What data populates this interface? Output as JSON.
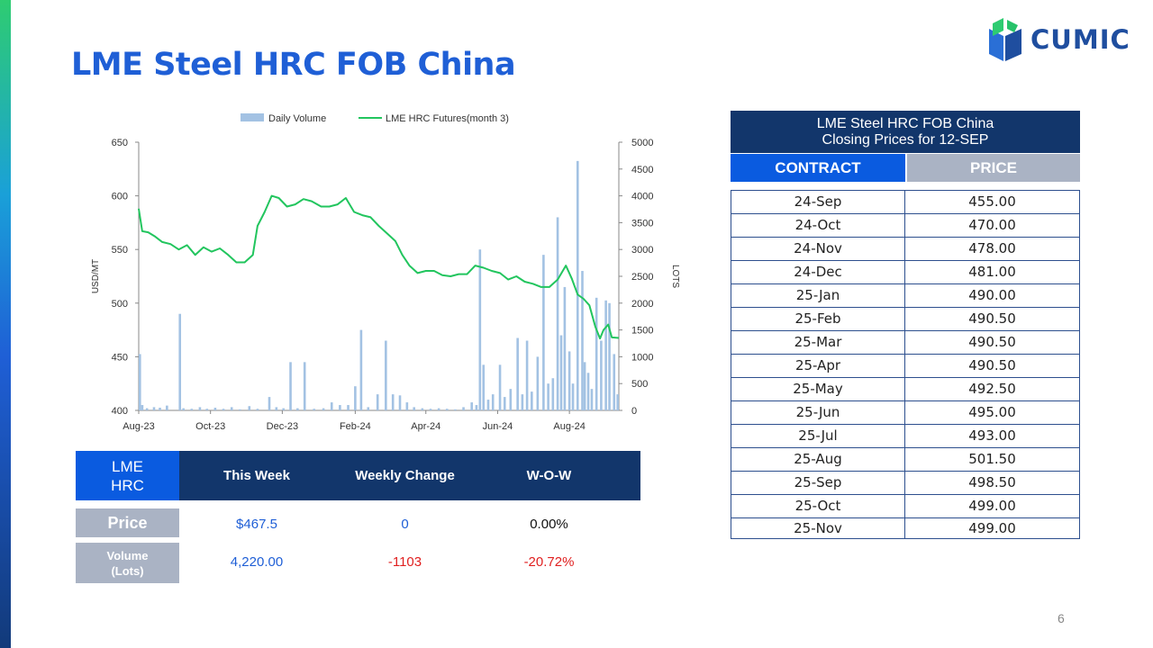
{
  "page": {
    "title": "LME Steel HRC FOB China",
    "page_number": "6",
    "colors": {
      "title": "#1f5fd6",
      "navy": "#12366b",
      "blue": "#0a5be0",
      "gray": "#aab3c4",
      "green": "#22c55e",
      "bar": "#a3c2e3",
      "red": "#e02020"
    }
  },
  "logo": {
    "text": "CUMIC"
  },
  "chart_data": {
    "type": "bar+line",
    "legend": [
      "Daily Volume",
      "LME HRC Futures(month 3)"
    ],
    "legend_position": "top",
    "left_axis": {
      "label": "USD/MT",
      "ylim": [
        400,
        650
      ],
      "ticks": [
        "400",
        "450",
        "500",
        "550",
        "600",
        "650"
      ]
    },
    "right_axis": {
      "label": "LOTS",
      "ylim": [
        0,
        5000
      ],
      "ticks": [
        "0",
        "500",
        "1000",
        "1500",
        "2000",
        "2500",
        "3000",
        "3500",
        "4000",
        "4500",
        "5000"
      ]
    },
    "x_ticks": [
      "Aug-23",
      "Oct-23",
      "Dec-23",
      "Feb-24",
      "Apr-24",
      "Jun-24",
      "Aug-24"
    ],
    "x_range": [
      "2023-08-01",
      "2024-09-12"
    ],
    "futures_line": [
      [
        "2023-08-01",
        588
      ],
      [
        "2023-08-04",
        567
      ],
      [
        "2023-08-09",
        566
      ],
      [
        "2023-08-15",
        562
      ],
      [
        "2023-08-21",
        557
      ],
      [
        "2023-08-28",
        555
      ],
      [
        "2023-09-04",
        550
      ],
      [
        "2023-09-11",
        554
      ],
      [
        "2023-09-18",
        545
      ],
      [
        "2023-09-25",
        552
      ],
      [
        "2023-10-02",
        548
      ],
      [
        "2023-10-09",
        551
      ],
      [
        "2023-10-16",
        545
      ],
      [
        "2023-10-23",
        538
      ],
      [
        "2023-10-30",
        538
      ],
      [
        "2023-11-06",
        545
      ],
      [
        "2023-11-10",
        572
      ],
      [
        "2023-11-16",
        585
      ],
      [
        "2023-11-22",
        600
      ],
      [
        "2023-11-28",
        598
      ],
      [
        "2023-12-05",
        590
      ],
      [
        "2023-12-12",
        592
      ],
      [
        "2023-12-19",
        597
      ],
      [
        "2023-12-26",
        595
      ],
      [
        "2024-01-03",
        590
      ],
      [
        "2024-01-10",
        590
      ],
      [
        "2024-01-17",
        592
      ],
      [
        "2024-01-24",
        598
      ],
      [
        "2024-01-31",
        585
      ],
      [
        "2024-02-07",
        582
      ],
      [
        "2024-02-14",
        580
      ],
      [
        "2024-02-21",
        572
      ],
      [
        "2024-02-28",
        565
      ],
      [
        "2024-03-06",
        558
      ],
      [
        "2024-03-12",
        545
      ],
      [
        "2024-03-18",
        535
      ],
      [
        "2024-03-25",
        528
      ],
      [
        "2024-04-01",
        530
      ],
      [
        "2024-04-08",
        530
      ],
      [
        "2024-04-15",
        526
      ],
      [
        "2024-04-22",
        525
      ],
      [
        "2024-04-29",
        527
      ],
      [
        "2024-05-06",
        527
      ],
      [
        "2024-05-13",
        535
      ],
      [
        "2024-05-20",
        533
      ],
      [
        "2024-05-27",
        530
      ],
      [
        "2024-06-03",
        528
      ],
      [
        "2024-06-10",
        522
      ],
      [
        "2024-06-17",
        525
      ],
      [
        "2024-06-24",
        520
      ],
      [
        "2024-07-01",
        518
      ],
      [
        "2024-07-08",
        515
      ],
      [
        "2024-07-15",
        515
      ],
      [
        "2024-07-22",
        522
      ],
      [
        "2024-07-29",
        535
      ],
      [
        "2024-08-03",
        523
      ],
      [
        "2024-08-08",
        508
      ],
      [
        "2024-08-13",
        504
      ],
      [
        "2024-08-18",
        498
      ],
      [
        "2024-08-23",
        478
      ],
      [
        "2024-08-27",
        467
      ],
      [
        "2024-08-30",
        475
      ],
      [
        "2024-09-03",
        480
      ],
      [
        "2024-09-06",
        468
      ],
      [
        "2024-09-12",
        467.5
      ]
    ],
    "volume_bars": [
      [
        "2023-08-02",
        1050
      ],
      [
        "2023-08-04",
        100
      ],
      [
        "2023-08-08",
        40
      ],
      [
        "2023-08-14",
        60
      ],
      [
        "2023-08-19",
        50
      ],
      [
        "2023-08-25",
        90
      ],
      [
        "2023-09-05",
        1800
      ],
      [
        "2023-09-08",
        40
      ],
      [
        "2023-09-15",
        30
      ],
      [
        "2023-09-22",
        60
      ],
      [
        "2023-09-28",
        30
      ],
      [
        "2023-10-05",
        50
      ],
      [
        "2023-10-12",
        30
      ],
      [
        "2023-10-19",
        60
      ],
      [
        "2023-10-26",
        20
      ],
      [
        "2023-11-03",
        80
      ],
      [
        "2023-11-10",
        30
      ],
      [
        "2023-11-20",
        250
      ],
      [
        "2023-11-26",
        60
      ],
      [
        "2023-12-02",
        40
      ],
      [
        "2023-12-08",
        900
      ],
      [
        "2023-12-14",
        40
      ],
      [
        "2023-12-20",
        900
      ],
      [
        "2023-12-28",
        30
      ],
      [
        "2024-01-05",
        40
      ],
      [
        "2024-01-12",
        150
      ],
      [
        "2024-01-19",
        100
      ],
      [
        "2024-01-26",
        100
      ],
      [
        "2024-02-01",
        450
      ],
      [
        "2024-02-06",
        1500
      ],
      [
        "2024-02-12",
        60
      ],
      [
        "2024-02-20",
        300
      ],
      [
        "2024-02-27",
        1300
      ],
      [
        "2024-03-04",
        300
      ],
      [
        "2024-03-10",
        280
      ],
      [
        "2024-03-16",
        150
      ],
      [
        "2024-03-22",
        60
      ],
      [
        "2024-03-29",
        40
      ],
      [
        "2024-04-05",
        30
      ],
      [
        "2024-04-12",
        40
      ],
      [
        "2024-04-19",
        30
      ],
      [
        "2024-04-26",
        20
      ],
      [
        "2024-05-03",
        60
      ],
      [
        "2024-05-10",
        150
      ],
      [
        "2024-05-14",
        100
      ],
      [
        "2024-05-17",
        3000
      ],
      [
        "2024-05-20",
        850
      ],
      [
        "2024-05-24",
        200
      ],
      [
        "2024-05-28",
        300
      ],
      [
        "2024-06-03",
        850
      ],
      [
        "2024-06-07",
        250
      ],
      [
        "2024-06-12",
        400
      ],
      [
        "2024-06-18",
        1350
      ],
      [
        "2024-06-22",
        300
      ],
      [
        "2024-06-26",
        1300
      ],
      [
        "2024-06-30",
        350
      ],
      [
        "2024-07-05",
        1000
      ],
      [
        "2024-07-10",
        2900
      ],
      [
        "2024-07-14",
        500
      ],
      [
        "2024-07-18",
        600
      ],
      [
        "2024-07-22",
        3600
      ],
      [
        "2024-07-25",
        1400
      ],
      [
        "2024-07-28",
        2300
      ],
      [
        "2024-08-01",
        1100
      ],
      [
        "2024-08-04",
        500
      ],
      [
        "2024-08-08",
        4650
      ],
      [
        "2024-08-12",
        2600
      ],
      [
        "2024-08-14",
        900
      ],
      [
        "2024-08-17",
        700
      ],
      [
        "2024-08-20",
        400
      ],
      [
        "2024-08-24",
        2100
      ],
      [
        "2024-08-28",
        1300
      ],
      [
        "2024-09-01",
        2050
      ],
      [
        "2024-09-04",
        2000
      ],
      [
        "2024-09-08",
        1050
      ],
      [
        "2024-09-11",
        300
      ]
    ]
  },
  "summary": {
    "corner_line1": "LME",
    "corner_line2": "HRC",
    "headers": [
      "This Week",
      "Weekly Change",
      "W-O-W"
    ],
    "price": {
      "label": "Price",
      "this_week": "$467.5",
      "change": "0",
      "wow": "0.00%"
    },
    "volume": {
      "label_line1": "Volume",
      "label_line2": "(Lots)",
      "this_week": "4,220.00",
      "change": "-1103",
      "wow": "-20.72%"
    }
  },
  "price_table": {
    "title_line1": "LME Steel HRC FOB China",
    "title_line2": "Closing Prices for 12-SEP",
    "col_contract": "CONTRACT",
    "col_price": "PRICE",
    "rows": [
      {
        "contract": "24-Sep",
        "price": "455.00"
      },
      {
        "contract": "24-Oct",
        "price": "470.00"
      },
      {
        "contract": "24-Nov",
        "price": "478.00"
      },
      {
        "contract": "24-Dec",
        "price": "481.00"
      },
      {
        "contract": "25-Jan",
        "price": "490.00"
      },
      {
        "contract": "25-Feb",
        "price": "490.50"
      },
      {
        "contract": "25-Mar",
        "price": "490.50"
      },
      {
        "contract": "25-Apr",
        "price": "490.50"
      },
      {
        "contract": "25-May",
        "price": "492.50"
      },
      {
        "contract": "25-Jun",
        "price": "495.00"
      },
      {
        "contract": "25-Jul",
        "price": "493.00"
      },
      {
        "contract": "25-Aug",
        "price": "501.50"
      },
      {
        "contract": "25-Sep",
        "price": "498.50"
      },
      {
        "contract": "25-Oct",
        "price": "499.00"
      },
      {
        "contract": "25-Nov",
        "price": "499.00"
      }
    ]
  }
}
